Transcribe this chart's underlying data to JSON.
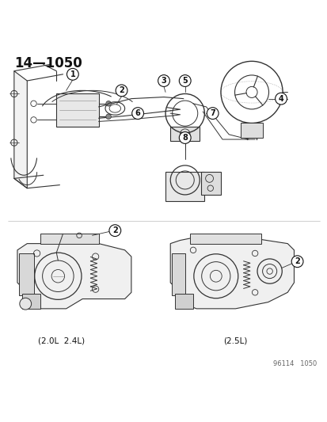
{
  "title": "14—1050",
  "bg_color": "#ffffff",
  "line_color": "#333333",
  "gray_light": "#cccccc",
  "gray_mid": "#999999",
  "gray_dark": "#555555",
  "callout_color": "#111111",
  "footer_text": "96114   1050",
  "label_2L_24L": "(2.0L  2.4L)",
  "label_25L": "(2.5L)",
  "fig_width": 4.14,
  "fig_height": 5.33,
  "dpi": 100
}
